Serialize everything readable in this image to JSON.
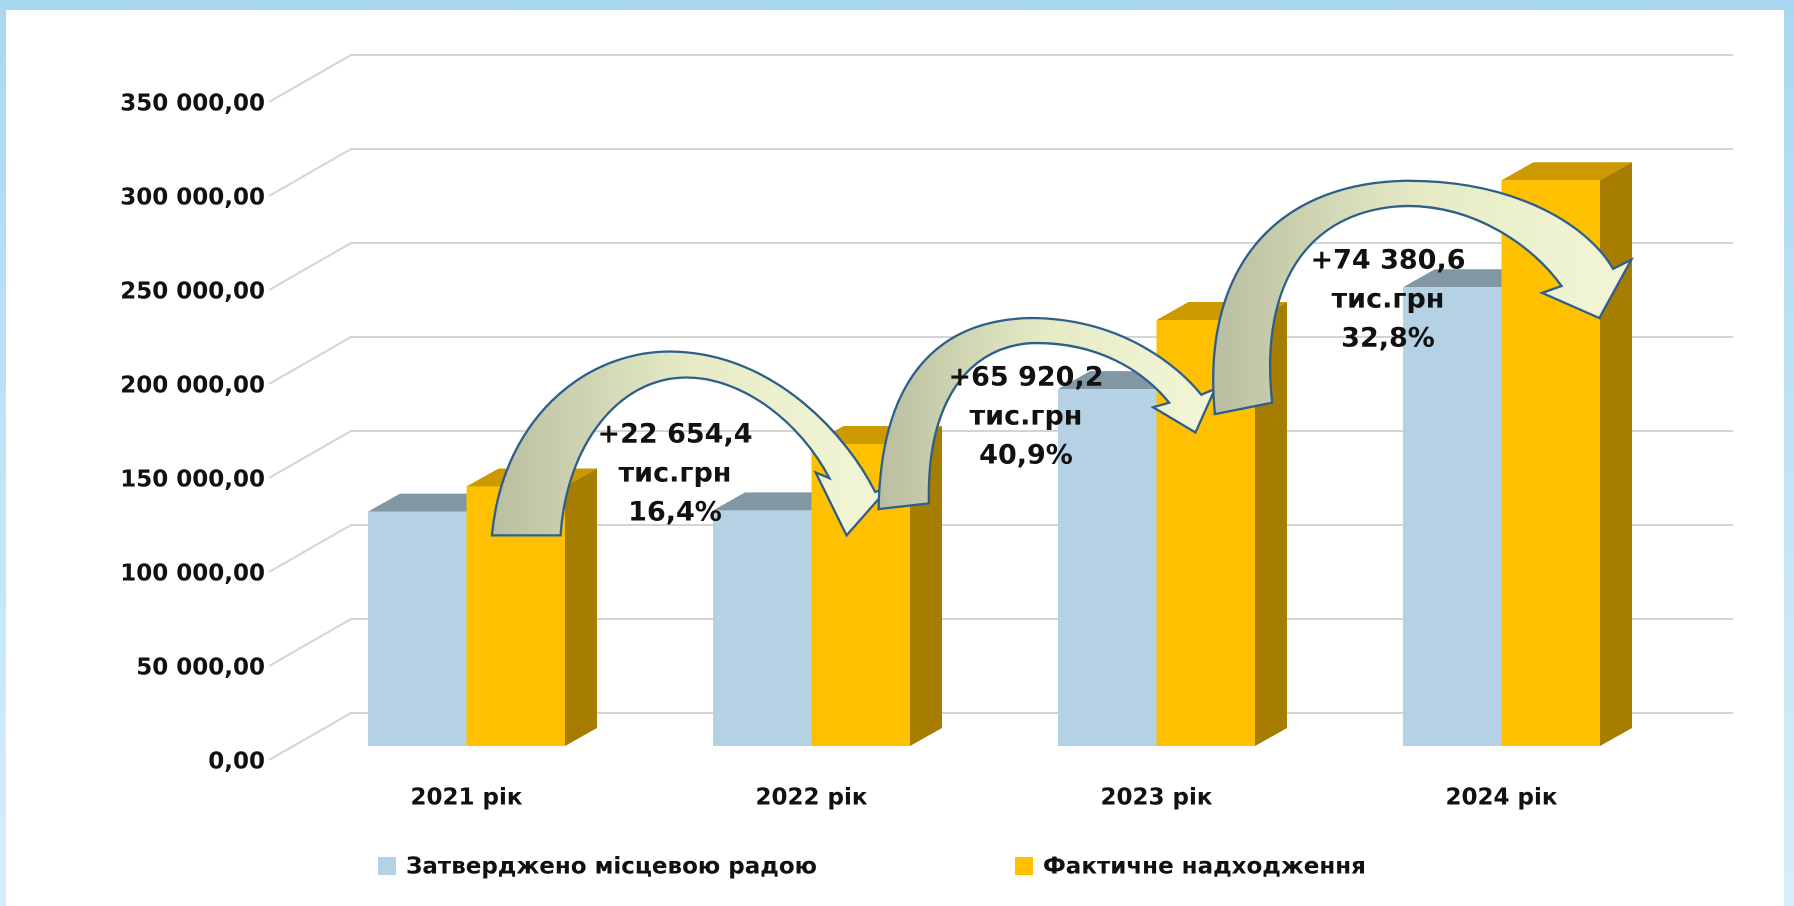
{
  "chart_data": {
    "type": "bar3d",
    "categories": [
      "2021 рік",
      "2022 рік",
      "2023 рік",
      "2024 рік"
    ],
    "series": [
      {
        "name": "Затверджено місцевою радою",
        "color": "#b4d2e4",
        "values": [
          124700,
          125300,
          189800,
          244000
        ]
      },
      {
        "name": "Фактичне надходження",
        "color": "#ffc000",
        "values": [
          138000,
          160650,
          226570,
          300950
        ]
      }
    ],
    "ylim": [
      0,
      350000
    ],
    "yticks": [
      {
        "value": 0,
        "label": "0,00"
      },
      {
        "value": 50000,
        "label": "50 000,00"
      },
      {
        "value": 100000,
        "label": "100 000,00"
      },
      {
        "value": 150000,
        "label": "150 000,00"
      },
      {
        "value": 200000,
        "label": "200 000,00"
      },
      {
        "value": 250000,
        "label": "250 000,00"
      },
      {
        "value": 300000,
        "label": "300 000,00"
      },
      {
        "value": 350000,
        "label": "350 000,00"
      }
    ],
    "grid": true,
    "annotations": [
      [
        "+22 654,4",
        "тис.грн",
        "16,4%"
      ],
      [
        "+65 920,2",
        "тис.грн",
        "40,9%"
      ],
      [
        "+74 380,6",
        "тис.грн",
        "32,8%"
      ]
    ]
  }
}
